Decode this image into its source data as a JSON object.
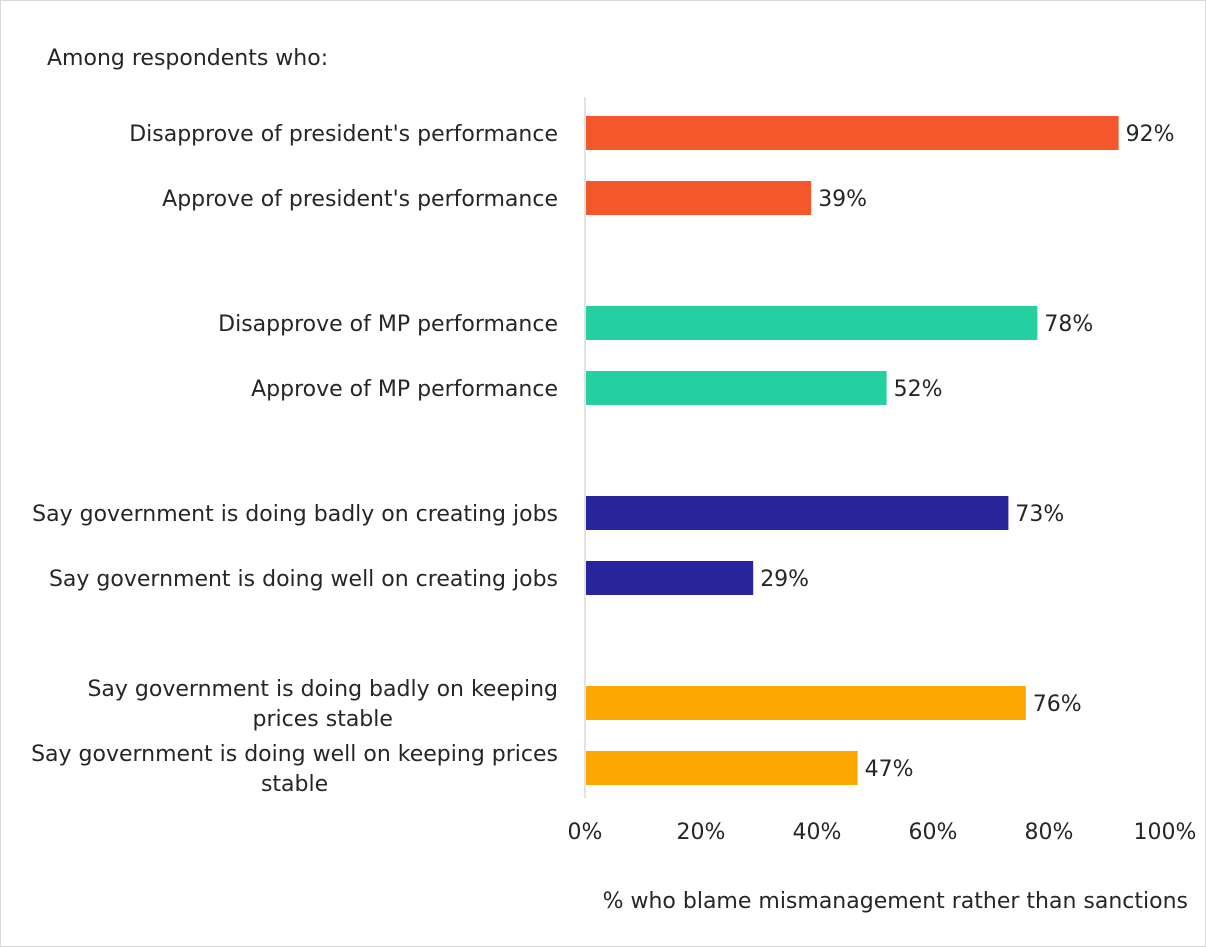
{
  "chart_data": {
    "type": "bar",
    "orientation": "horizontal",
    "subtitle": "Among respondents who:",
    "xlabel": "% who blame mismanagement rather than sanctions",
    "ylabel": "",
    "xlim": [
      0,
      100
    ],
    "xticks": [
      "0%",
      "20%",
      "40%",
      "60%",
      "80%",
      "100%"
    ],
    "grid": false,
    "legend": "none",
    "value_suffix": "%",
    "groups": [
      {
        "color": "#f4572c",
        "bars": [
          {
            "label": "Disapprove of president's performance",
            "value": 92
          },
          {
            "label": "Approve of president's performance",
            "value": 39
          }
        ]
      },
      {
        "color": "#24d0a2",
        "bars": [
          {
            "label": "Disapprove of MP performance",
            "value": 78
          },
          {
            "label": "Approve of MP performance",
            "value": 52
          }
        ]
      },
      {
        "color": "#28249c",
        "bars": [
          {
            "label": "Say government is doing badly on creating jobs",
            "value": 73
          },
          {
            "label": "Say government is doing well on creating jobs",
            "value": 29
          }
        ]
      },
      {
        "color": "#fda800",
        "bars": [
          {
            "label": "Say government is doing badly on keeping prices stable",
            "value": 76
          },
          {
            "label": "Say government is doing well on keeping prices stable",
            "value": 47
          }
        ]
      }
    ]
  }
}
